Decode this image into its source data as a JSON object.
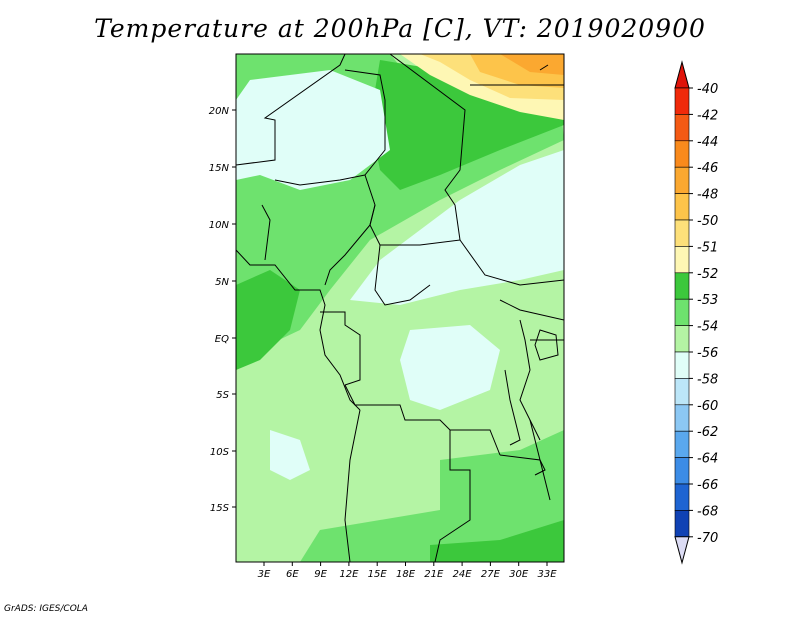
{
  "title": "Temperature at 200hPa [C], VT: 2019020900",
  "credit": "GrADS: IGES/COLA",
  "map": {
    "lat_ticks": [
      "20N",
      "15N",
      "10N",
      "5N",
      "EQ",
      "5S",
      "10S",
      "15S"
    ],
    "lon_ticks": [
      "3E",
      "6E",
      "9E",
      "12E",
      "15E",
      "18E",
      "21E",
      "24E",
      "27E",
      "30E",
      "33E"
    ]
  },
  "colorbar": {
    "levels": [
      {
        "label": "-40",
        "color": "#f02a0a"
      },
      {
        "label": "-42",
        "color": "#f45a14"
      },
      {
        "label": "-44",
        "color": "#f98a1c"
      },
      {
        "label": "-46",
        "color": "#fba830"
      },
      {
        "label": "-48",
        "color": "#fdc44a"
      },
      {
        "label": "-50",
        "color": "#fde07a"
      },
      {
        "label": "-51",
        "color": "#fef7b4"
      },
      {
        "label": "-52",
        "color": "#3cc83c"
      },
      {
        "label": "-53",
        "color": "#6ee26e"
      },
      {
        "label": "-54",
        "color": "#b4f4a4"
      },
      {
        "label": "-56",
        "color": "#e0fef8"
      },
      {
        "label": "-58",
        "color": "#bce6f8"
      },
      {
        "label": "-60",
        "color": "#8cc8f4"
      },
      {
        "label": "-62",
        "color": "#5aa8ee"
      },
      {
        "label": "-64",
        "color": "#3c8ce6"
      },
      {
        "label": "-66",
        "color": "#1e64d2"
      },
      {
        "label": "-68",
        "color": "#1042b4"
      },
      {
        "label": "-70",
        "color": "#0a1e78"
      }
    ],
    "top_color": "#e0140a",
    "bottom_color": "#dcdcf4"
  }
}
